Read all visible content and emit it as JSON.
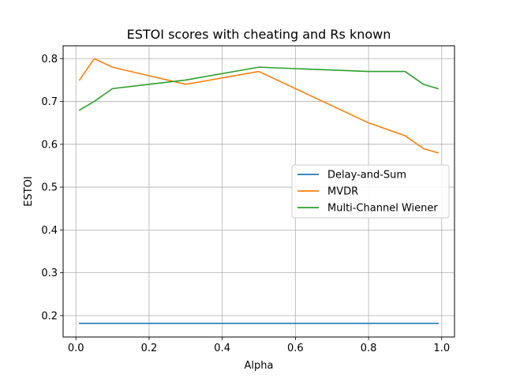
{
  "chart_data": {
    "type": "line",
    "title": "ESTOI scores with cheating and Rs known",
    "xlabel": "Alpha",
    "ylabel": "ESTOI",
    "xlim": [
      -0.035,
      1.035
    ],
    "ylim": [
      0.15,
      0.83
    ],
    "xticks": [
      0.0,
      0.2,
      0.4,
      0.6,
      0.8,
      1.0
    ],
    "xtick_labels": [
      "0.0",
      "0.2",
      "0.4",
      "0.6",
      "0.8",
      "1.0"
    ],
    "yticks": [
      0.2,
      0.3,
      0.4,
      0.5,
      0.6,
      0.7,
      0.8
    ],
    "ytick_labels": [
      "0.2",
      "0.3",
      "0.4",
      "0.5",
      "0.6",
      "0.7",
      "0.8"
    ],
    "grid": true,
    "legend_position": "center-right",
    "series": [
      {
        "name": "Delay-and-Sum",
        "color": "#1f77b4",
        "x": [
          0.01,
          0.05,
          0.1,
          0.2,
          0.3,
          0.5,
          0.8,
          0.9,
          0.95,
          0.99
        ],
        "y": [
          0.182,
          0.182,
          0.182,
          0.182,
          0.182,
          0.182,
          0.182,
          0.182,
          0.182,
          0.182
        ]
      },
      {
        "name": "MVDR",
        "color": "#ff7f0e",
        "x": [
          0.01,
          0.05,
          0.1,
          0.2,
          0.3,
          0.5,
          0.8,
          0.9,
          0.95,
          0.99
        ],
        "y": [
          0.75,
          0.8,
          0.78,
          0.76,
          0.74,
          0.77,
          0.65,
          0.62,
          0.59,
          0.58
        ]
      },
      {
        "name": "Multi-Channel Wiener",
        "color": "#2ca02c",
        "x": [
          0.01,
          0.05,
          0.1,
          0.2,
          0.3,
          0.5,
          0.8,
          0.9,
          0.95,
          0.99
        ],
        "y": [
          0.68,
          0.7,
          0.73,
          0.74,
          0.75,
          0.78,
          0.77,
          0.77,
          0.74,
          0.73
        ]
      }
    ]
  }
}
